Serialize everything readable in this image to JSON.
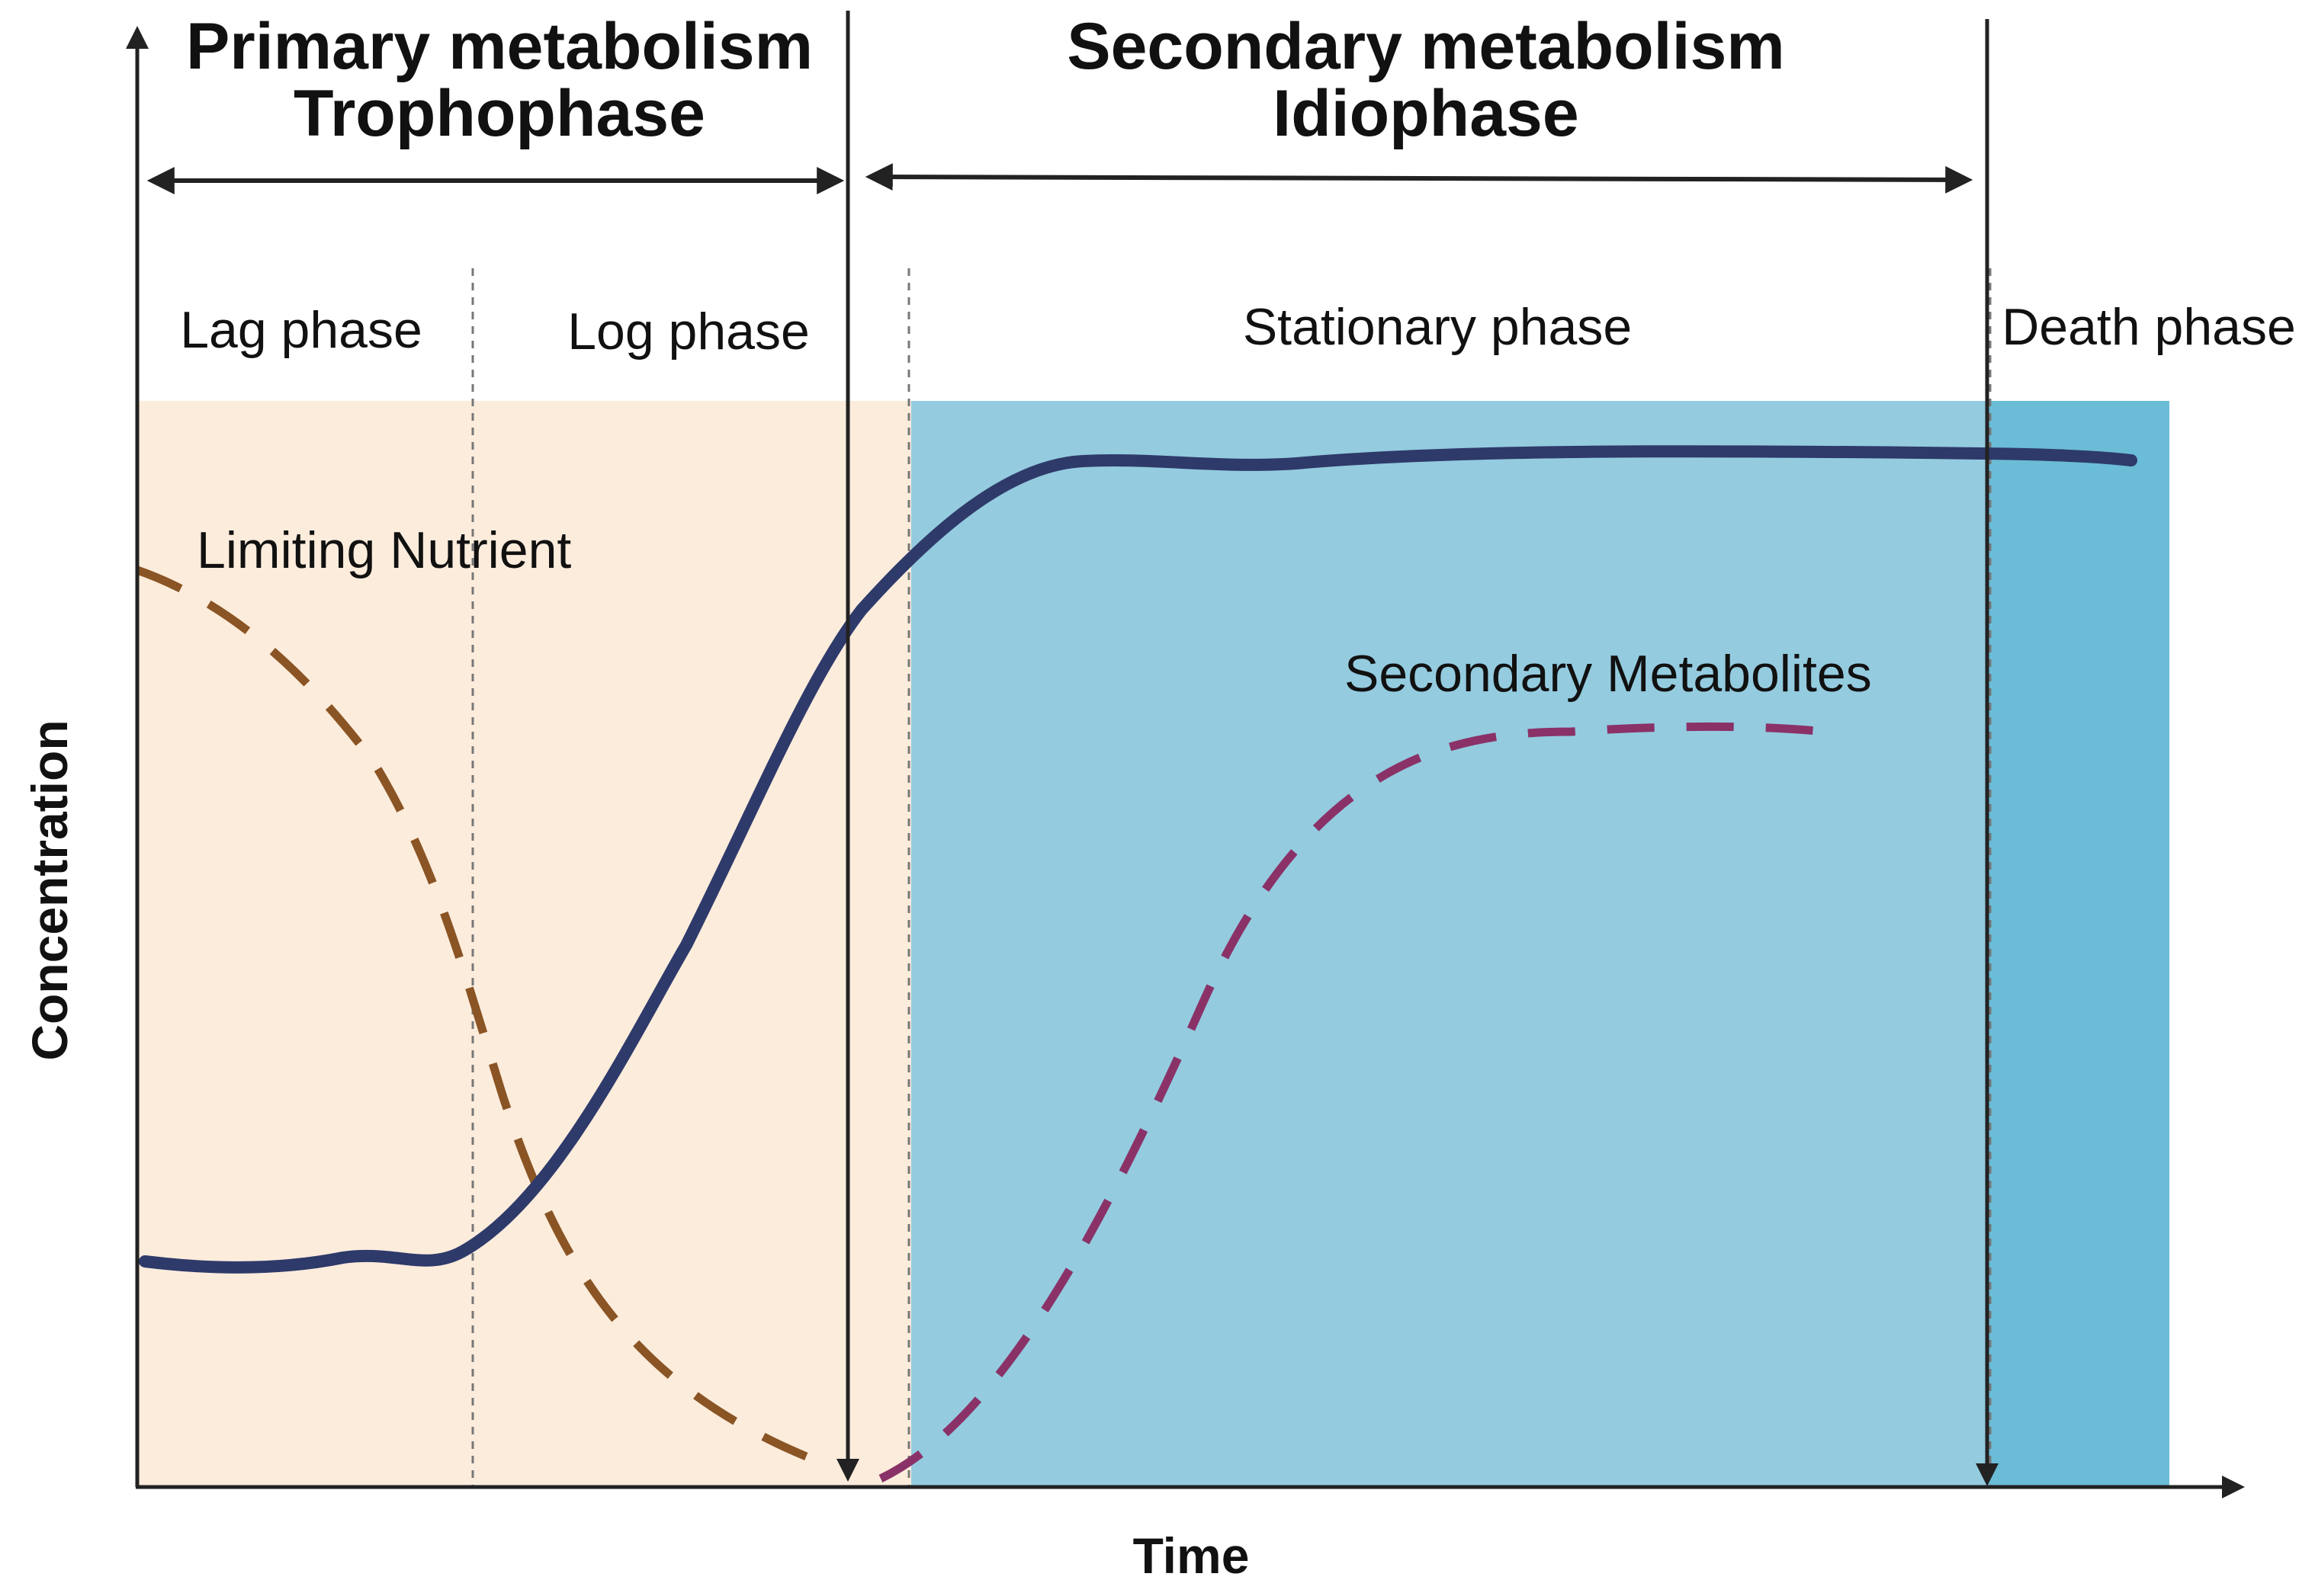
{
  "header": {
    "primary_title": "Primary metabolism",
    "primary_subtitle": "Trophophase",
    "secondary_title": "Secondary metabolism",
    "secondary_subtitle": "Idiophase"
  },
  "phases": {
    "lag": "Lag phase",
    "log": "Log phase",
    "stationary": "Stationary phase",
    "death": "Death phase"
  },
  "curves": {
    "limiting_nutrient": "Limiting Nutrient",
    "secondary_metabolites": "Secondary Metabolites"
  },
  "axes": {
    "x_label": "Time",
    "y_label": "Concentration"
  },
  "colors": {
    "primary_region": "#fcecdc",
    "stationary_region": "#94cbdf",
    "death_region": "#6bbcd7",
    "growth_curve": "#2e3a6a",
    "nutrient_curve": "#8a5424",
    "metabolite_curve": "#8a3268",
    "axis": "#222222"
  }
}
